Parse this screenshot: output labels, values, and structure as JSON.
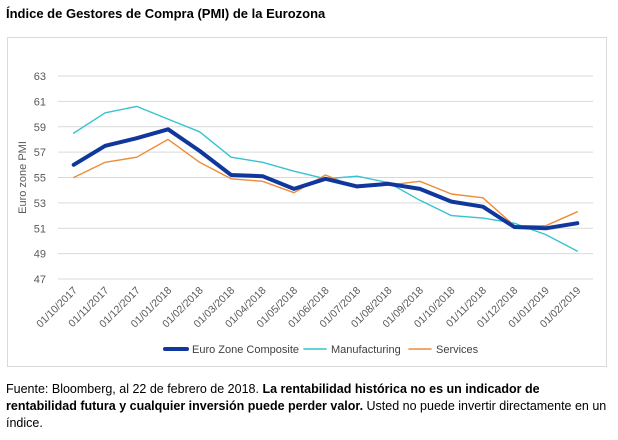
{
  "title": "Índice de Gestores de Compra (PMI) de la Eurozona",
  "chart_data": {
    "type": "line",
    "title": "",
    "xlabel": "",
    "ylabel": "Euro zone PMI",
    "ylim": [
      47,
      63
    ],
    "yticks": [
      47,
      49,
      51,
      53,
      55,
      57,
      59,
      61,
      63
    ],
    "grid": true,
    "legend_position": "bottom",
    "categories": [
      "01/10/2017",
      "01/11/2017",
      "01/12/2017",
      "01/01/2018",
      "01/02/2018",
      "01/03/2018",
      "01/04/2018",
      "01/05/2018",
      "01/06/2018",
      "01/07/2018",
      "01/08/2018",
      "01/09/2018",
      "01/10/2018",
      "01/11/2018",
      "01/12/2018",
      "01/01/2019",
      "01/02/2019"
    ],
    "series": [
      {
        "name": "Euro Zone Composite",
        "color": "#10379b",
        "values": [
          56.0,
          57.5,
          58.1,
          58.8,
          57.1,
          55.2,
          55.1,
          54.1,
          54.9,
          54.3,
          54.5,
          54.1,
          53.1,
          52.7,
          51.1,
          51.0,
          51.4
        ]
      },
      {
        "name": "Manufacturing",
        "color": "#36c3cf",
        "values": [
          58.5,
          60.1,
          60.6,
          59.6,
          58.6,
          56.6,
          56.2,
          55.5,
          54.9,
          55.1,
          54.6,
          53.2,
          52.0,
          51.8,
          51.4,
          50.5,
          49.2
        ]
      },
      {
        "name": "Services",
        "color": "#ed8c3a",
        "values": [
          55.0,
          56.2,
          56.6,
          58.0,
          56.2,
          54.9,
          54.7,
          53.8,
          55.2,
          54.2,
          54.4,
          54.7,
          53.7,
          53.4,
          51.2,
          51.2,
          52.3
        ]
      }
    ]
  },
  "footer": {
    "source": "Fuente: Bloomberg, al 22 de febrero de 2018.",
    "disclaimer": "La rentabilidad histórica no es un indicador de rentabilidad futura y cualquier inversión puede perder valor.",
    "note": "Usted no puede invertir directamente en un índice."
  }
}
